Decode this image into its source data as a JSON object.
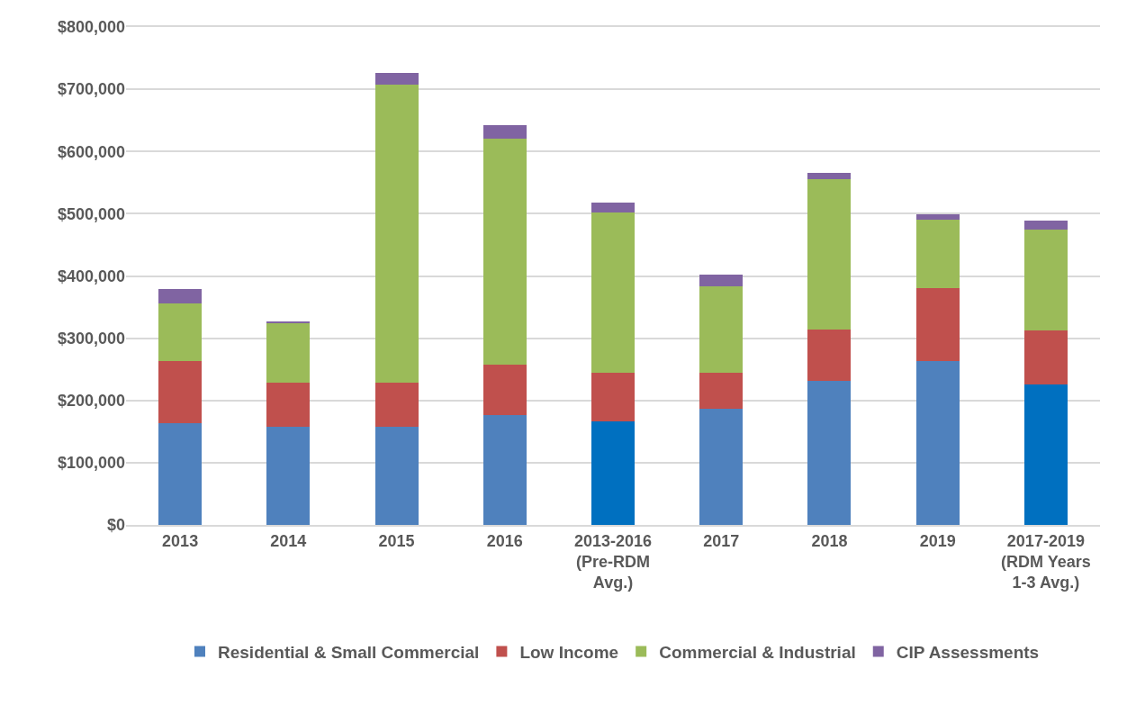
{
  "chart_data": {
    "type": "bar",
    "stacked": true,
    "categories": [
      "2013",
      "2014",
      "2015",
      "2016",
      "2013-2016\n(Pre-RDM\nAvg.)",
      "2017",
      "2018",
      "2019",
      "2017-2019\n(RDM Years\n1-3 Avg.)"
    ],
    "series": [
      {
        "name": "Residential & Small Commercial",
        "color": "#4f81bd",
        "colors": [
          "#4f81bd",
          "#4f81bd",
          "#4f81bd",
          "#4f81bd",
          "#0070c0",
          "#4f81bd",
          "#4f81bd",
          "#4f81bd",
          "#0070c0"
        ],
        "values": [
          164000,
          158000,
          158000,
          176000,
          166000,
          187000,
          231000,
          263000,
          226000
        ]
      },
      {
        "name": "Low Income",
        "color": "#c0504d",
        "values": [
          99000,
          71000,
          71000,
          81000,
          79000,
          58000,
          83000,
          117000,
          86000
        ]
      },
      {
        "name": "Commercial & Industrial",
        "color": "#9bbb59",
        "values": [
          93000,
          95000,
          478000,
          364000,
          257000,
          138000,
          242000,
          111000,
          163000
        ]
      },
      {
        "name": "CIP Assessments",
        "color": "#8064a2",
        "values": [
          23000,
          3000,
          19000,
          22000,
          16000,
          19000,
          10000,
          8000,
          14000
        ]
      }
    ],
    "ylim": [
      0,
      800000
    ],
    "yticks": [
      {
        "value": 0,
        "label": "$0"
      },
      {
        "value": 100000,
        "label": "$100,000"
      },
      {
        "value": 200000,
        "label": "$200,000"
      },
      {
        "value": 300000,
        "label": "$300,000"
      },
      {
        "value": 400000,
        "label": "$400,000"
      },
      {
        "value": 500000,
        "label": "$500,000"
      },
      {
        "value": 600000,
        "label": "$600,000"
      },
      {
        "value": 700000,
        "label": "$700,000"
      },
      {
        "value": 800000,
        "label": "$800,000"
      }
    ],
    "grid": "y",
    "legend": "bottom"
  }
}
